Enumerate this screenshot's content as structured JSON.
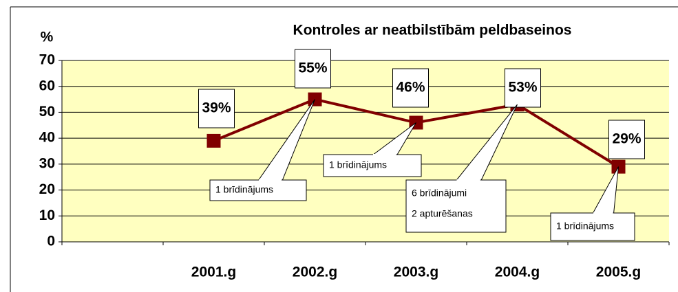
{
  "chart_data": {
    "type": "line",
    "title": "Kontroles ar neatbilstībām peldbaseinos",
    "ylabel": "%",
    "categories": [
      null,
      "2001.g",
      "2002.g",
      "2003.g",
      "2004.g",
      "2005.g"
    ],
    "series": [
      {
        "name": "Kontroles ar neatbilstībām",
        "color": "#800000",
        "values": [
          null,
          39,
          55,
          46,
          53,
          29
        ],
        "value_labels": [
          null,
          "39%",
          "55%",
          "46%",
          "53%",
          "29%"
        ]
      }
    ],
    "ylim": [
      0,
      70
    ],
    "yticks": [
      0,
      10,
      20,
      30,
      40,
      50,
      60,
      70
    ],
    "grid": true,
    "plot_background": "#ffffc0",
    "annotations": [
      [
        "1 brīdinājums"
      ],
      [
        "1 brīdinājums"
      ],
      [
        "6 brīdinājumi",
        "2 apturēšanas"
      ],
      [
        "1 brīdinājums"
      ]
    ]
  }
}
